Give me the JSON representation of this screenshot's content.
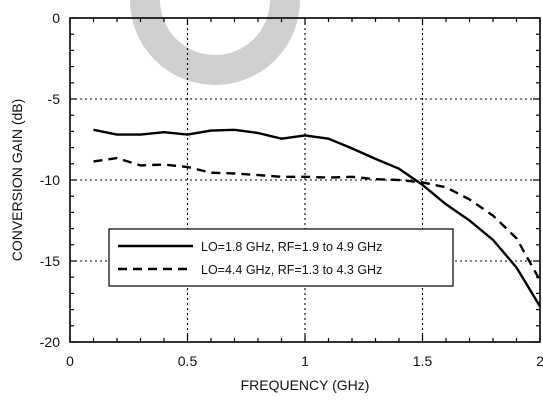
{
  "chart_data": {
    "type": "line",
    "title": "",
    "xlabel": "FREQUENCY (GHz)",
    "ylabel": "CONVERSION GAIN (dB)",
    "xlim": [
      0,
      2
    ],
    "ylim": [
      -20,
      0
    ],
    "x_ticks": [
      "0",
      "0.5",
      "1",
      "1.5",
      "2"
    ],
    "y_ticks": [
      "0",
      "-5",
      "-10",
      "-15",
      "-20"
    ],
    "grid": "dotted at x = 0.5, 1, 1.5 and y = -5, -10, -15",
    "legend_position": "lower-left",
    "series": [
      {
        "name": "LO=1.8 GHz, RF=1.9 to 4.9 GHz",
        "line_style": "solid",
        "x": [
          0.1,
          0.2,
          0.3,
          0.4,
          0.5,
          0.6,
          0.7,
          0.8,
          0.9,
          1.0,
          1.1,
          1.2,
          1.3,
          1.4,
          1.5,
          1.6,
          1.7,
          1.8,
          1.9,
          2.0
        ],
        "y": [
          -6.9,
          -7.2,
          -7.2,
          -7.05,
          -7.2,
          -6.95,
          -6.9,
          -7.1,
          -7.45,
          -7.25,
          -7.45,
          -8.05,
          -8.7,
          -9.3,
          -10.3,
          -11.5,
          -12.5,
          -13.7,
          -15.4,
          -17.8
        ]
      },
      {
        "name": "LO=4.4 GHz, RF=1.3 to 4.3 GHz",
        "line_style": "dashed",
        "x": [
          0.1,
          0.2,
          0.3,
          0.4,
          0.5,
          0.6,
          0.7,
          0.8,
          0.9,
          1.0,
          1.1,
          1.2,
          1.3,
          1.4,
          1.5,
          1.6,
          1.7,
          1.8,
          1.9,
          2.0
        ],
        "y": [
          -8.85,
          -8.65,
          -9.1,
          -9.05,
          -9.2,
          -9.55,
          -9.6,
          -9.7,
          -9.8,
          -9.8,
          -9.85,
          -9.8,
          -9.95,
          -10.0,
          -10.15,
          -10.45,
          -11.2,
          -12.2,
          -13.6,
          -16.2
        ]
      }
    ]
  }
}
